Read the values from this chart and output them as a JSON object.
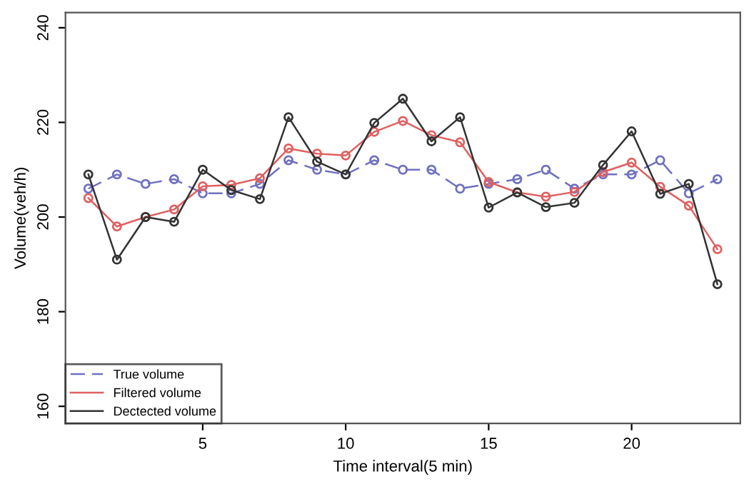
{
  "chart_data": {
    "type": "line",
    "xlabel": "Time interval(5 min)",
    "ylabel": "Volume(veh/h)",
    "x": [
      1,
      2,
      3,
      4,
      5,
      6,
      7,
      8,
      9,
      10,
      11,
      12,
      13,
      14,
      15,
      16,
      17,
      18,
      19,
      20,
      21,
      22,
      23
    ],
    "xlim": [
      0.2,
      23.8
    ],
    "xticks": [
      5,
      10,
      15,
      20
    ],
    "ylim": [
      156.4,
      243.2
    ],
    "yticks": [
      160,
      180,
      200,
      220,
      240
    ],
    "marker": "circle",
    "grid": false,
    "legend": "bottom left",
    "series": [
      {
        "name": "True volume",
        "color": "#7070c0",
        "line_style": "dashed",
        "values": [
          206,
          209,
          207,
          208,
          205,
          205,
          207,
          212,
          210,
          209,
          212,
          210,
          210,
          206,
          207,
          208,
          210,
          206,
          209,
          209,
          212,
          205,
          208
        ]
      },
      {
        "name": "Filtered volume",
        "color": "#e06060",
        "line_style": "solid",
        "values": [
          204,
          198,
          200,
          201.6,
          206.5,
          206.8,
          208.2,
          214.5,
          213.4,
          213,
          218,
          220.3,
          217.3,
          215.8,
          207.4,
          205.2,
          204.3,
          205.3,
          209.5,
          211.5,
          206.4,
          202.4,
          193.2
        ]
      },
      {
        "name": "Dectected volume",
        "color": "#333333",
        "line_style": "solid",
        "values": [
          209,
          191,
          200,
          199,
          210,
          205.7,
          203.8,
          221.1,
          211.7,
          209,
          219.9,
          225,
          216,
          221.1,
          202,
          205.2,
          202.1,
          203,
          211,
          218.1,
          204.9,
          207,
          185.8
        ]
      }
    ]
  }
}
